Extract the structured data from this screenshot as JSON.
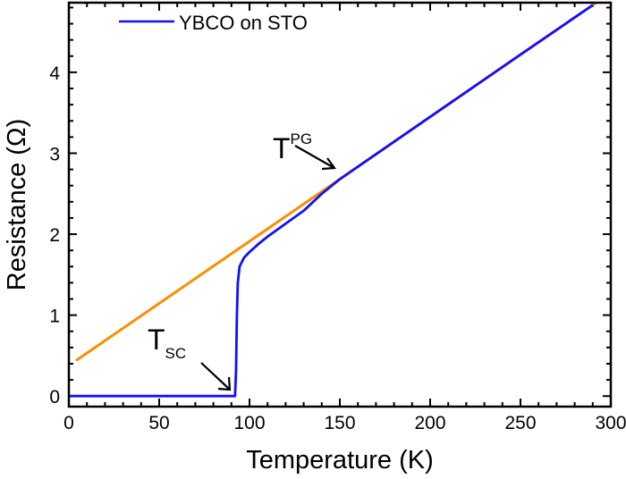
{
  "chart_data": {
    "type": "line",
    "title": "",
    "xlabel": "Temperature (K)",
    "ylabel": "Resistance (Ω)",
    "xlim": [
      0,
      300
    ],
    "ylim": [
      -0.13,
      4.86
    ],
    "xticks": [
      0,
      50,
      100,
      150,
      200,
      250,
      300
    ],
    "yticks": [
      0,
      1,
      2,
      3,
      4
    ],
    "grid": false,
    "legend_position": "top-left",
    "series": [
      {
        "name": "YBCO on STO",
        "color": "#1010ff",
        "x": [
          0,
          92,
          92.5,
          93,
          93.5,
          94.5,
          97,
          100,
          105,
          110,
          120,
          130,
          140,
          150,
          200,
          250,
          290
        ],
        "y": [
          0,
          0,
          0.3,
          1.0,
          1.4,
          1.6,
          1.71,
          1.78,
          1.88,
          1.97,
          2.13,
          2.29,
          2.5,
          2.68,
          3.45,
          4.22,
          4.83
        ]
      },
      {
        "name": "",
        "color": "#ff8c00",
        "x": [
          4,
          292
        ],
        "y": [
          0.44,
          4.86
        ]
      }
    ],
    "annotations": [
      {
        "label": "T",
        "sup": "PG",
        "x": 150,
        "y": 2.68
      },
      {
        "label": "T",
        "sub": "SC",
        "x": 92,
        "y": 0
      }
    ]
  }
}
